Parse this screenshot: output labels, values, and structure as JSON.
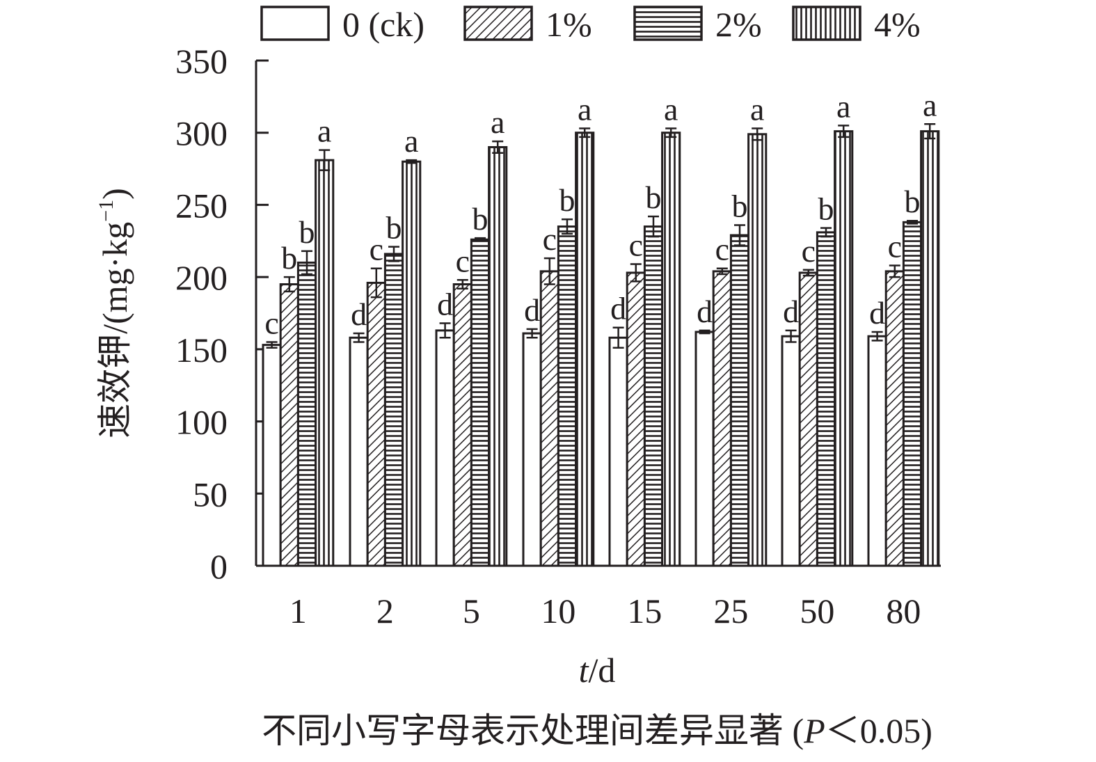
{
  "chart_data": {
    "type": "bar",
    "categories": [
      "1",
      "2",
      "5",
      "10",
      "15",
      "25",
      "50",
      "80"
    ],
    "series": [
      {
        "name": "0 (ck)",
        "pattern": "blank",
        "values": [
          153,
          158,
          163,
          161,
          158,
          162,
          159,
          159
        ],
        "errors": [
          2,
          3,
          5,
          3,
          7,
          1,
          4,
          3
        ],
        "letters": [
          "c",
          "d",
          "d",
          "d",
          "d",
          "d",
          "d",
          "d"
        ]
      },
      {
        "name": "1%",
        "pattern": "diagonal",
        "values": [
          195,
          196,
          195,
          204,
          203,
          204,
          203,
          204
        ],
        "errors": [
          5,
          10,
          3,
          9,
          6,
          2,
          2,
          4
        ],
        "letters": [
          "b",
          "c",
          "c",
          "c",
          "c",
          "c",
          "c",
          "c"
        ]
      },
      {
        "name": "2%",
        "pattern": "horizontal",
        "values": [
          210,
          216,
          226,
          235,
          235,
          229,
          231,
          238
        ],
        "errors": [
          8,
          5,
          1,
          5,
          7,
          7,
          3,
          1
        ],
        "letters": [
          "b",
          "b",
          "b",
          "b",
          "b",
          "b",
          "b",
          "b"
        ]
      },
      {
        "name": "4%",
        "pattern": "vertical",
        "values": [
          281,
          280,
          290,
          300,
          300,
          299,
          301,
          301
        ],
        "errors": [
          7,
          1,
          4,
          3,
          3,
          4,
          4,
          5
        ],
        "letters": [
          "a",
          "a",
          "a",
          "a",
          "a",
          "a",
          "a",
          "a"
        ]
      }
    ],
    "yticks": [
      "0",
      "50",
      "100",
      "150",
      "200",
      "250",
      "300",
      "350"
    ],
    "ylim": [
      0,
      350
    ],
    "ylabel": "速效钾/(mg·kg",
    "ylabel_sup": "−1",
    "ylabel_close": ")",
    "xlabel_var": "t",
    "xlabel_unit": "/d",
    "note": "不同小写字母表示处理间差异显著 (",
    "note_var": "P",
    "note_rest": "＜0.05)",
    "legend_position": "top",
    "grid": false,
    "bar_stroke": "#231f20",
    "background": "#ffffff"
  }
}
